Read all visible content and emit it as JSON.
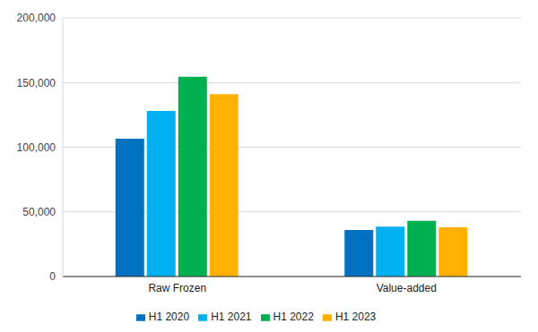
{
  "chart_data": {
    "type": "bar",
    "categories": [
      "Raw Frozen",
      "Value-added"
    ],
    "series": [
      {
        "name": "H1 2020",
        "color": "#0070c0",
        "values": [
          106500,
          36000
        ]
      },
      {
        "name": "H1 2021",
        "color": "#00b0f0",
        "values": [
          128000,
          38500
        ]
      },
      {
        "name": "H1 2022",
        "color": "#00b050",
        "values": [
          154500,
          43000
        ]
      },
      {
        "name": "H1 2023",
        "color": "#ffb000",
        "values": [
          141000,
          38000
        ]
      }
    ],
    "ylim": [
      0,
      200000
    ],
    "yticks": [
      0,
      {
        "value": 50000,
        "label": "50,000"
      },
      {
        "value": 100000,
        "label": "100,000"
      },
      {
        "value": 150000,
        "label": "150,000"
      },
      {
        "value": 200000,
        "label": "200,000"
      }
    ],
    "grid": true,
    "legend": "bottom"
  }
}
